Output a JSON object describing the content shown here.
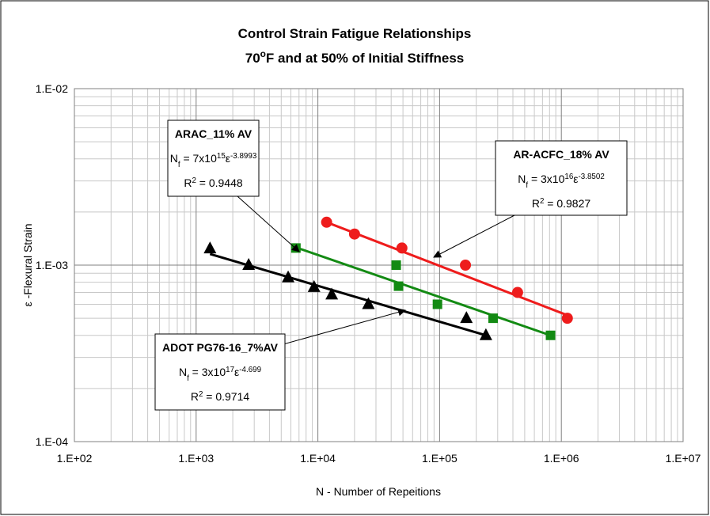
{
  "chart_data": {
    "type": "scatter",
    "title": "Control Strain Fatigue Relationships",
    "subtitle": [
      {
        "text": "70"
      },
      {
        "sup": "o"
      },
      {
        "text": "F and at 50% of Initial Stiffness"
      }
    ],
    "x_label": "N - Number of Repeitions",
    "y_label": "ε -Flexural Strain",
    "log_x": true,
    "log_y": true,
    "grid": true,
    "xlim": [
      100,
      10000000
    ],
    "xticks": [
      {
        "value": 100,
        "label": "1.E+02"
      },
      {
        "value": 1000,
        "label": "1.E+03"
      },
      {
        "value": 10000,
        "label": "1.E+04"
      },
      {
        "value": 100000,
        "label": "1.E+05"
      },
      {
        "value": 1000000,
        "label": "1.E+06"
      },
      {
        "value": 10000000,
        "label": "1.E+07"
      }
    ],
    "ylim": [
      0.0001,
      0.01
    ],
    "yticks": [
      {
        "value": 0.0001,
        "label": "1.E-04"
      },
      {
        "value": 0.001,
        "label": "1.E-03"
      },
      {
        "value": 0.01,
        "label": "1.E-02"
      }
    ],
    "series": [
      {
        "name": "ADOT PG76-16_7%AV",
        "color": "#000000",
        "marker": "triangle",
        "x": [
          1300,
          2700,
          5700,
          9300,
          13000,
          26000,
          166000,
          240000
        ],
        "values": [
          0.00124,
          0.001,
          0.00085,
          0.00075,
          0.00068,
          0.0006,
          0.0005,
          0.0004
        ],
        "trendline": {
          "x": [
            1300,
            240000
          ],
          "values": [
            0.001156,
            0.0004
          ]
        },
        "annotation": {
          "equation": [
            {
              "text": "N"
            },
            {
              "sub": "f"
            },
            {
              "text": " = 3x10"
            },
            {
              "sup": "17"
            },
            {
              "text": "ε"
            },
            {
              "sup": "-4.699"
            }
          ],
          "r2": [
            {
              "text": "R"
            },
            {
              "sup": "2"
            },
            {
              "text": " = 0.9714"
            }
          ]
        }
      },
      {
        "name": "ARAC_11% AV",
        "color": "#138a13",
        "marker": "square",
        "x": [
          6600,
          44000,
          46000,
          96000,
          275000,
          815000
        ],
        "values": [
          0.00125,
          0.001,
          0.00076,
          0.0006,
          0.0005,
          0.0004
        ],
        "trendline": {
          "x": [
            6600,
            815000
          ],
          "values": [
            0.00126,
            0.0004
          ]
        },
        "annotation": {
          "equation": [
            {
              "text": "N"
            },
            {
              "sub": "f"
            },
            {
              "text": " = 7x10"
            },
            {
              "sup": "15"
            },
            {
              "text": "ε"
            },
            {
              "sup": "-3.8993"
            }
          ],
          "r2": [
            {
              "text": "R"
            },
            {
              "sup": "2"
            },
            {
              "text": " = 0.9448"
            }
          ]
        }
      },
      {
        "name": "AR-ACFC_18% AV",
        "color": "#ee1c1c",
        "marker": "circle",
        "x": [
          11800,
          20000,
          49000,
          163000,
          437000,
          1120000
        ],
        "values": [
          0.00175,
          0.0015,
          0.00125,
          0.001,
          0.0007,
          0.0005
        ],
        "trendline": {
          "x": [
            11800,
            1120000
          ],
          "values": [
            0.00175,
            0.00052
          ]
        },
        "annotation": {
          "equation": [
            {
              "text": "N"
            },
            {
              "sub": "f"
            },
            {
              "text": " = 3x10"
            },
            {
              "sup": "16"
            },
            {
              "text": "ε"
            },
            {
              "sup": "-3.8502"
            }
          ],
          "r2": [
            {
              "text": "R"
            },
            {
              "sup": "2"
            },
            {
              "text": " = 0.9827"
            }
          ]
        }
      }
    ]
  }
}
